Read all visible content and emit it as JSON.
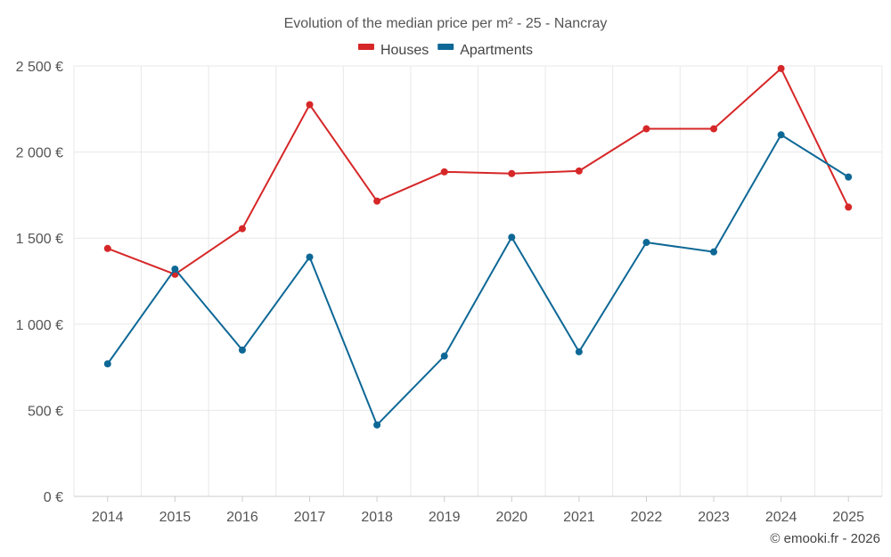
{
  "chart_data": {
    "type": "line",
    "title": "Evolution of the median price per m² - 25 - Nancray",
    "categories": [
      "2014",
      "2015",
      "2016",
      "2017",
      "2018",
      "2019",
      "2020",
      "2021",
      "2022",
      "2023",
      "2024",
      "2025"
    ],
    "series": [
      {
        "name": "Houses",
        "color": "#d62728",
        "values": [
          1440,
          1290,
          1555,
          2275,
          1715,
          1885,
          1875,
          1890,
          2135,
          2135,
          2485,
          1680
        ]
      },
      {
        "name": "Apartments",
        "color": "#0e6896",
        "values": [
          770,
          1320,
          850,
          1390,
          415,
          815,
          1505,
          840,
          1475,
          1420,
          2100,
          1855
        ]
      }
    ],
    "ylim": [
      0,
      2500
    ],
    "yticks": [
      0,
      500,
      1000,
      1500,
      2000,
      2500
    ],
    "ytick_labels": [
      "0 €",
      "500 €",
      "1 000 €",
      "1 500 €",
      "2 000 €",
      "2 500 €"
    ],
    "xlabel": "",
    "ylabel": "",
    "grid": true,
    "legend_position": "top-center"
  },
  "credit": "© emooki.fr - 2026"
}
